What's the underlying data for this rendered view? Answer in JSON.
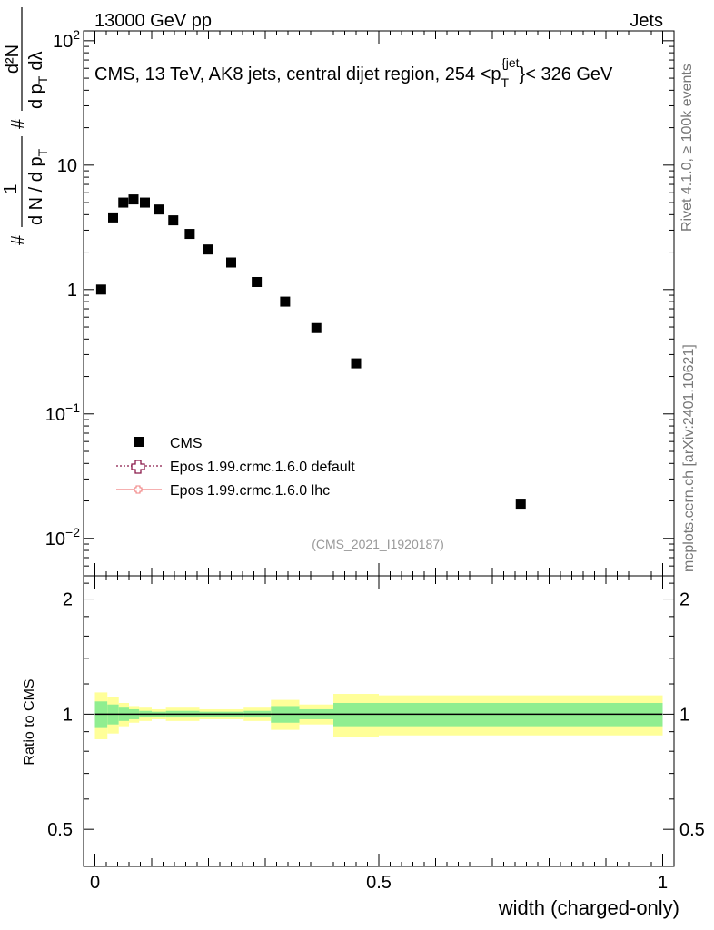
{
  "header": {
    "left": "13000 GeV pp",
    "right": "Jets"
  },
  "side_labels": {
    "rivet": "Rivet 4.1.0, ≥ 100k events",
    "mcplots": "mcplots.cern.ch [arXiv:2401.10621]"
  },
  "chart_data": [
    {
      "type": "scatter",
      "panel": "main",
      "title": "CMS, 13 TeV, AK8 jets, central dijet region, 254 <p_T^{jet}< 326 GeV",
      "title_parts": {
        "pre": "CMS, 13 TeV, AK8 jets, central dijet region, 254 <p",
        "sub": "T",
        "sup": "{jet",
        "post": "}< 326 GeV"
      },
      "ylabel": "1/(dN/dp_T) d²N/(dp_T dλ)",
      "ylabel_parts": {
        "num": "1",
        "den": "d N / d p",
        "den_sub": "T",
        "frac_top": "d²N",
        "frac_bot": "d p",
        "frac_bot_sub": "T",
        "frac_bot_tail": "dλ",
        "hash": "#"
      },
      "yscale": "log",
      "ylim": [
        0.005,
        120
      ],
      "xlim": [
        -0.02,
        1.02
      ],
      "y_ticks": [
        {
          "value": 100,
          "label": "10",
          "exp": "2"
        },
        {
          "value": 10,
          "label": "10",
          "exp": ""
        },
        {
          "value": 1,
          "label": "1",
          "exp": ""
        },
        {
          "value": 0.1,
          "label": "10",
          "exp": "−1"
        },
        {
          "value": 0.01,
          "label": "10",
          "exp": "−2"
        }
      ],
      "series": [
        {
          "name": "CMS",
          "x": [
            0.011,
            0.032,
            0.05,
            0.068,
            0.088,
            0.112,
            0.138,
            0.167,
            0.2,
            0.24,
            0.285,
            0.335,
            0.39,
            0.46,
            0.75
          ],
          "y": [
            1.0,
            3.8,
            5.0,
            5.3,
            5.0,
            4.4,
            3.6,
            2.8,
            2.1,
            1.65,
            1.15,
            0.8,
            0.49,
            0.255,
            0.019
          ]
        }
      ],
      "legend": [
        {
          "label": "CMS",
          "style": "square"
        },
        {
          "label": "Epos 1.99.crmc.1.6.0 default",
          "style": "cross-dotted",
          "color": "#8b1a4a"
        },
        {
          "label": "Epos 1.99.crmc.1.6.0 lhc",
          "style": "cross-line",
          "color": "#f08080"
        }
      ],
      "legend_position": "bottom-left",
      "annotation": "(CMS_2021_I1920187)"
    },
    {
      "type": "area",
      "panel": "ratio",
      "ylabel": "Ratio to CMS",
      "xlabel": "width (charged-only)",
      "ylim": [
        0.4,
        2.3
      ],
      "yscale": "log",
      "xlim": [
        -0.02,
        1.02
      ],
      "x_ticks": [
        {
          "value": 0,
          "label": "0"
        },
        {
          "value": 0.5,
          "label": "0.5"
        },
        {
          "value": 1,
          "label": "1"
        }
      ],
      "y_ticks": [
        {
          "value": 2,
          "label": "2"
        },
        {
          "value": 1,
          "label": "1"
        },
        {
          "value": 0.5,
          "label": "0.5"
        }
      ],
      "bin_edges": [
        0,
        0.022,
        0.042,
        0.06,
        0.078,
        0.1,
        0.125,
        0.152,
        0.184,
        0.22,
        0.262,
        0.31,
        0.36,
        0.42,
        0.5,
        1.0
      ],
      "band_outer": [
        0.14,
        0.11,
        0.07,
        0.05,
        0.04,
        0.03,
        0.04,
        0.04,
        0.03,
        0.03,
        0.04,
        0.09,
        0.06,
        0.13,
        0.12
      ],
      "band_inner": [
        0.08,
        0.06,
        0.04,
        0.03,
        0.02,
        0.015,
        0.02,
        0.02,
        0.015,
        0.015,
        0.02,
        0.05,
        0.03,
        0.07,
        0.07
      ],
      "colors": {
        "outer": "#ffff99",
        "inner": "#90ee90",
        "line": "#000000"
      }
    }
  ]
}
